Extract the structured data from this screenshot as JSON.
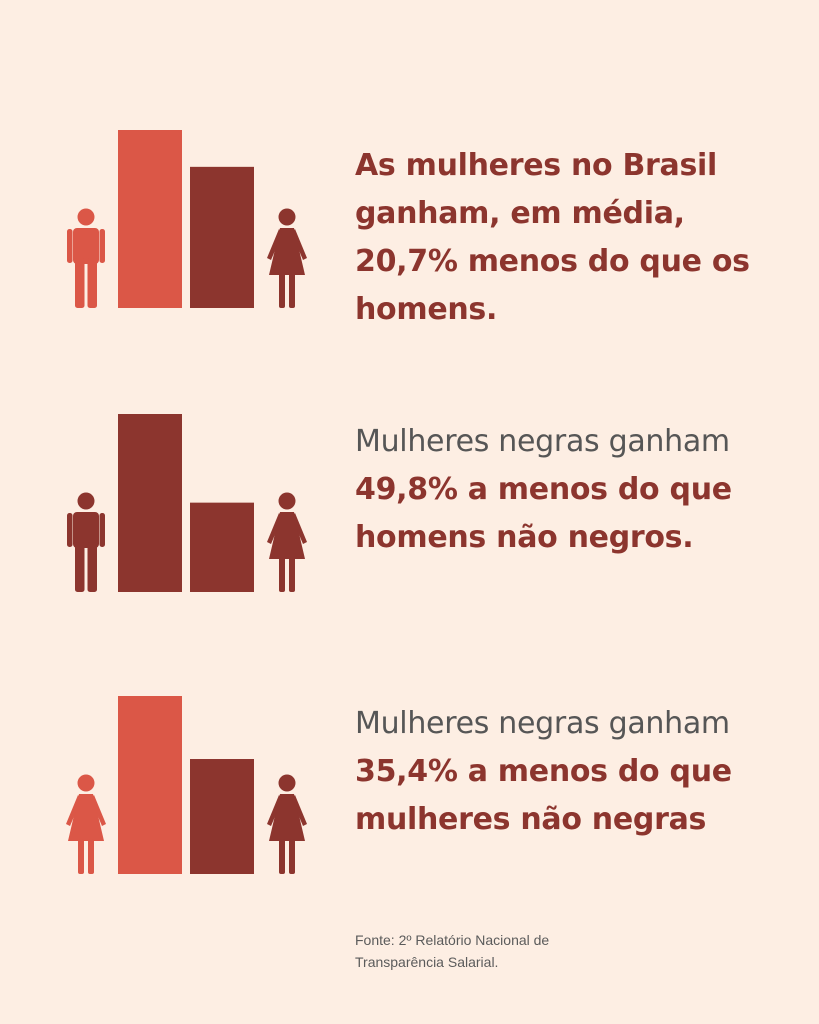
{
  "colors": {
    "background": "#fdeee3",
    "light_red": "#db5747",
    "dark_red": "#8c352e",
    "grey_text": "#565656"
  },
  "chart_data": [
    {
      "type": "bar",
      "categories": [
        "man",
        "woman"
      ],
      "icons": [
        "man-icon",
        "woman-icon"
      ],
      "values": [
        100,
        79.3
      ],
      "bar_colors": [
        "#db5747",
        "#8c352e"
      ],
      "icon_colors": [
        "#db5747",
        "#8c352e"
      ],
      "ylim": [
        0,
        100
      ],
      "text": {
        "normal": "",
        "bold": "As mulheres no Brasil ganham, em média, 20,7% menos do que os homens."
      }
    },
    {
      "type": "bar",
      "categories": [
        "man",
        "woman"
      ],
      "icons": [
        "man-icon",
        "woman-icon"
      ],
      "values": [
        100,
        50.2
      ],
      "bar_colors": [
        "#8c352e",
        "#8c352e"
      ],
      "icon_colors": [
        "#8c352e",
        "#8c352e"
      ],
      "ylim": [
        0,
        100
      ],
      "text": {
        "normal": "Mulheres negras ganham ",
        "bold": "49,8% a menos do que homens não negros."
      }
    },
    {
      "type": "bar",
      "categories": [
        "woman",
        "woman"
      ],
      "icons": [
        "woman-icon",
        "woman-icon"
      ],
      "values": [
        100,
        64.6
      ],
      "bar_colors": [
        "#db5747",
        "#8c352e"
      ],
      "icon_colors": [
        "#db5747",
        "#8c352e"
      ],
      "ylim": [
        0,
        100
      ],
      "text": {
        "normal": "Mulheres negras ganham ",
        "bold": "35,4% a menos do que mulheres não negras"
      }
    }
  ],
  "source": "Fonte: 2º Relatório Nacional de Transparência Salarial."
}
